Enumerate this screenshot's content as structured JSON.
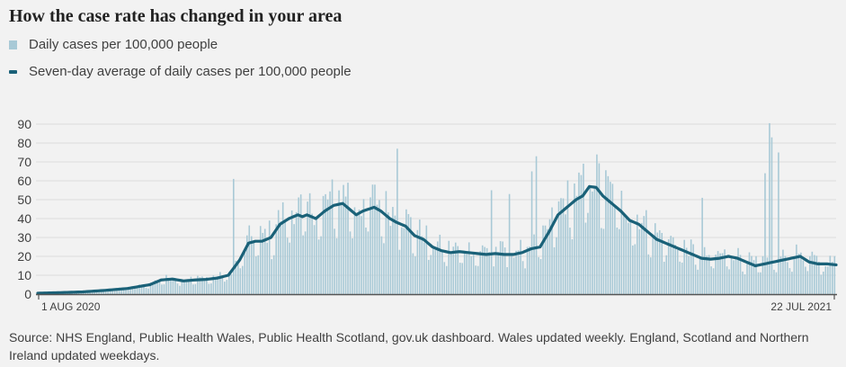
{
  "header": {
    "title": "How the case rate has changed in your area"
  },
  "legend": {
    "bars_label": "Daily cases per 100,000 people",
    "line_label": "Seven-day average of daily cases per 100,000 people"
  },
  "colors": {
    "bars": "#a8c9d6",
    "line": "#1a6178",
    "grid": "#dcdcdc",
    "axis": "#555555"
  },
  "chart_data": {
    "type": "bar",
    "title": "How the case rate has changed in your area",
    "xlabel": "",
    "ylabel": "",
    "ylim": [
      0,
      90
    ],
    "yticks": [
      0,
      10,
      20,
      30,
      40,
      50,
      60,
      70,
      80,
      90
    ],
    "ytick_labels": [
      "0",
      "10",
      "20",
      "30",
      "40",
      "50",
      "60",
      "70",
      "80",
      "90"
    ],
    "x_start_label": "1 AUG 2020",
    "x_end_label": "22 JUL 2021",
    "days": 356,
    "series": [
      {
        "name": "Seven-day average of daily cases per 100,000 people",
        "kind": "line",
        "points": [
          [
            0,
            0.5
          ],
          [
            10,
            0.8
          ],
          [
            20,
            1.2
          ],
          [
            30,
            2
          ],
          [
            40,
            3
          ],
          [
            50,
            5
          ],
          [
            55,
            7.5
          ],
          [
            60,
            8
          ],
          [
            65,
            7
          ],
          [
            70,
            7.5
          ],
          [
            75,
            7.8
          ],
          [
            80,
            8.5
          ],
          [
            85,
            10
          ],
          [
            90,
            18
          ],
          [
            94,
            27
          ],
          [
            97,
            28
          ],
          [
            100,
            28
          ],
          [
            104,
            30
          ],
          [
            108,
            37
          ],
          [
            112,
            40
          ],
          [
            116,
            42
          ],
          [
            118,
            41
          ],
          [
            120,
            42
          ],
          [
            124,
            40
          ],
          [
            128,
            44
          ],
          [
            132,
            47
          ],
          [
            136,
            48
          ],
          [
            139,
            45
          ],
          [
            142,
            42
          ],
          [
            145,
            44
          ],
          [
            150,
            46
          ],
          [
            153,
            44
          ],
          [
            157,
            40
          ],
          [
            160,
            38
          ],
          [
            164,
            36
          ],
          [
            168,
            31
          ],
          [
            172,
            29
          ],
          [
            176,
            25
          ],
          [
            180,
            23
          ],
          [
            184,
            22
          ],
          [
            188,
            22.5
          ],
          [
            192,
            22
          ],
          [
            196,
            21.5
          ],
          [
            200,
            21
          ],
          [
            204,
            21.5
          ],
          [
            208,
            21
          ],
          [
            212,
            21
          ],
          [
            216,
            22
          ],
          [
            220,
            24
          ],
          [
            224,
            25
          ],
          [
            228,
            33
          ],
          [
            232,
            42
          ],
          [
            236,
            46
          ],
          [
            240,
            50
          ],
          [
            243,
            52
          ],
          [
            246,
            57
          ],
          [
            249,
            56.5
          ],
          [
            252,
            52
          ],
          [
            256,
            48
          ],
          [
            260,
            44
          ],
          [
            264,
            39
          ],
          [
            268,
            37
          ],
          [
            272,
            33
          ],
          [
            276,
            29
          ],
          [
            280,
            27
          ],
          [
            284,
            25
          ],
          [
            288,
            23
          ],
          [
            292,
            21
          ],
          [
            296,
            19
          ],
          [
            300,
            18.5
          ],
          [
            304,
            19
          ],
          [
            308,
            20
          ],
          [
            312,
            19
          ],
          [
            316,
            17
          ],
          [
            320,
            15
          ],
          [
            324,
            16
          ],
          [
            328,
            17
          ],
          [
            332,
            18
          ],
          [
            336,
            19
          ],
          [
            340,
            20
          ],
          [
            344,
            17
          ],
          [
            348,
            16
          ],
          [
            352,
            16
          ],
          [
            356,
            15.5
          ]
        ]
      },
      {
        "name": "Daily cases per 100,000 people",
        "kind": "bar",
        "peaks": [
          90.5,
          83,
          77,
          75,
          73,
          65,
          64,
          61,
          59,
          55,
          53,
          52,
          51
        ]
      }
    ]
  },
  "footer": {
    "source": "Source: NHS England, Public Health Wales, Public Health Scotland, gov.uk dashboard. Wales updated weekly. England, Scotland and Northern Ireland updated weekdays."
  }
}
